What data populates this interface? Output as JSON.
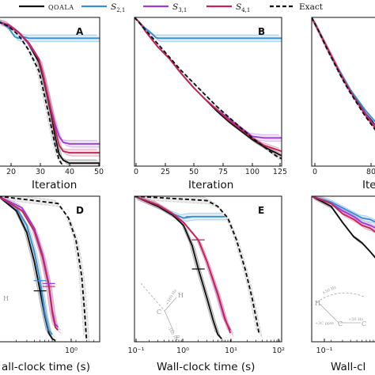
{
  "legend": [
    {
      "label": "QOALA",
      "color": "#111111",
      "dash": "none"
    },
    {
      "label": "S2,1",
      "color": "#3a8fd0",
      "dash": "none"
    },
    {
      "label": "S3,1",
      "color": "#9b3fd0",
      "dash": "none"
    },
    {
      "label": "S4,1",
      "color": "#c8245a",
      "dash": "none"
    },
    {
      "label": "Exact",
      "color": "#111111",
      "dash": "5,3"
    }
  ],
  "chart_data": [
    {
      "panel": "A",
      "type": "line",
      "xlabel": "Iteration",
      "xlim": [
        0,
        50
      ],
      "ylim": [
        0,
        1
      ],
      "xticks": [
        "20",
        "30",
        "40",
        "50"
      ],
      "series": [
        {
          "name": "QOALA",
          "x": [
            0,
            5,
            10,
            15,
            20,
            22,
            24,
            26,
            28,
            30,
            32,
            35,
            40,
            50
          ],
          "y": [
            0.97,
            0.95,
            0.9,
            0.82,
            0.7,
            0.6,
            0.48,
            0.35,
            0.2,
            0.08,
            0.04,
            0.02,
            0.02,
            0.02
          ]
        },
        {
          "name": "S2,1",
          "x": [
            0,
            5,
            8,
            10,
            12,
            15,
            20,
            30,
            40,
            50
          ],
          "y": [
            0.98,
            0.93,
            0.87,
            0.86,
            0.87,
            0.86,
            0.86,
            0.86,
            0.86,
            0.86
          ]
        },
        {
          "name": "S3,1",
          "x": [
            0,
            5,
            10,
            15,
            20,
            22,
            24,
            26,
            28,
            30,
            32,
            35,
            40,
            50
          ],
          "y": [
            0.97,
            0.94,
            0.9,
            0.82,
            0.72,
            0.62,
            0.5,
            0.38,
            0.28,
            0.2,
            0.16,
            0.15,
            0.15,
            0.15
          ]
        },
        {
          "name": "S4,1",
          "x": [
            0,
            5,
            10,
            15,
            20,
            22,
            24,
            26,
            28,
            30,
            32,
            35,
            40,
            50
          ],
          "y": [
            0.97,
            0.95,
            0.9,
            0.83,
            0.72,
            0.62,
            0.5,
            0.37,
            0.25,
            0.14,
            0.1,
            0.09,
            0.09,
            0.09
          ]
        },
        {
          "name": "Exact",
          "x": [
            0,
            5,
            10,
            15,
            20,
            22,
            24,
            26,
            28,
            30,
            32
          ],
          "y": [
            0.97,
            0.94,
            0.88,
            0.78,
            0.64,
            0.52,
            0.4,
            0.27,
            0.14,
            0.04,
            0.0
          ]
        }
      ]
    },
    {
      "panel": "B",
      "type": "line",
      "xlabel": "Iteration",
      "xlim": [
        0,
        125
      ],
      "ylim": [
        0,
        1
      ],
      "xticks": [
        "0",
        "25",
        "50",
        "75",
        "100",
        "125"
      ],
      "series": [
        {
          "name": "QOALA",
          "x": [
            0,
            5,
            10,
            15,
            20,
            25,
            30,
            40,
            50,
            60,
            70,
            80,
            90,
            100,
            110,
            120,
            125
          ],
          "y": [
            1.0,
            0.96,
            0.9,
            0.85,
            0.8,
            0.76,
            0.72,
            0.62,
            0.53,
            0.45,
            0.37,
            0.3,
            0.24,
            0.18,
            0.13,
            0.09,
            0.07
          ]
        },
        {
          "name": "S2,1",
          "x": [
            0,
            5,
            10,
            15,
            18,
            20,
            25,
            50,
            75,
            100,
            125
          ],
          "y": [
            1.0,
            0.96,
            0.92,
            0.89,
            0.865,
            0.86,
            0.86,
            0.86,
            0.86,
            0.86,
            0.86
          ]
        },
        {
          "name": "S3,1",
          "x": [
            0,
            5,
            10,
            15,
            20,
            25,
            30,
            40,
            50,
            60,
            70,
            80,
            90,
            100,
            110,
            125
          ],
          "y": [
            1.0,
            0.96,
            0.9,
            0.85,
            0.8,
            0.76,
            0.72,
            0.62,
            0.53,
            0.45,
            0.38,
            0.32,
            0.26,
            0.2,
            0.19,
            0.19
          ]
        },
        {
          "name": "S4,1",
          "x": [
            0,
            5,
            10,
            15,
            20,
            25,
            30,
            40,
            50,
            60,
            70,
            80,
            90,
            100,
            110,
            125
          ],
          "y": [
            1.0,
            0.96,
            0.9,
            0.85,
            0.8,
            0.76,
            0.72,
            0.62,
            0.53,
            0.45,
            0.38,
            0.31,
            0.25,
            0.19,
            0.14,
            0.1
          ]
        },
        {
          "name": "Exact",
          "x": [
            0,
            10,
            20,
            30,
            40,
            50,
            60,
            70,
            80,
            90,
            100,
            110,
            120,
            125
          ],
          "y": [
            1.0,
            0.91,
            0.82,
            0.73,
            0.64,
            0.56,
            0.48,
            0.4,
            0.33,
            0.26,
            0.19,
            0.13,
            0.07,
            0.05
          ]
        }
      ]
    },
    {
      "panel": "C",
      "type": "line",
      "xlabel": "Ite",
      "xlim": [
        0,
        100
      ],
      "ylim": [
        0,
        1
      ],
      "xticks": [
        "0",
        "80"
      ],
      "series": [
        {
          "name": "QOALA",
          "x": [
            0,
            10,
            20,
            30,
            40,
            50,
            60,
            70,
            80,
            90,
            100
          ],
          "y": [
            1.0,
            0.9,
            0.8,
            0.7,
            0.6,
            0.52,
            0.44,
            0.36,
            0.3,
            0.22,
            0.15
          ]
        },
        {
          "name": "S2,1",
          "x": [
            0,
            10,
            20,
            30,
            40,
            50,
            60,
            70,
            80,
            90,
            100
          ],
          "y": [
            1.0,
            0.9,
            0.8,
            0.7,
            0.61,
            0.52,
            0.45,
            0.38,
            0.32,
            0.26,
            0.2
          ]
        },
        {
          "name": "S3,1",
          "x": [
            0,
            10,
            20,
            30,
            40,
            50,
            60,
            70,
            80,
            90,
            100
          ],
          "y": [
            1.0,
            0.9,
            0.8,
            0.7,
            0.6,
            0.51,
            0.43,
            0.36,
            0.29,
            0.23,
            0.17
          ]
        },
        {
          "name": "S4,1",
          "x": [
            0,
            10,
            20,
            30,
            40,
            50,
            60,
            70,
            80,
            90,
            100
          ],
          "y": [
            1.0,
            0.9,
            0.8,
            0.7,
            0.6,
            0.51,
            0.43,
            0.35,
            0.28,
            0.22,
            0.16
          ]
        },
        {
          "name": "Exact",
          "x": [
            0,
            10,
            20,
            30,
            40,
            50,
            60,
            70,
            80,
            90,
            100
          ],
          "y": [
            1.0,
            0.9,
            0.79,
            0.69,
            0.59,
            0.5,
            0.42,
            0.34,
            0.27,
            0.2,
            0.14
          ]
        }
      ]
    },
    {
      "panel": "D",
      "type": "line",
      "xlabel": "all-clock time (s)",
      "xscale": "log",
      "xlim": [
        0.1,
        5
      ],
      "ylim": [
        0,
        1
      ],
      "xticks": [
        "10⁰"
      ],
      "series": [
        {
          "name": "QOALA",
          "x": [
            0.1,
            0.2,
            0.3,
            0.4,
            0.5,
            0.6,
            0.7,
            0.8,
            0.9
          ],
          "y": [
            1.0,
            0.9,
            0.75,
            0.55,
            0.35,
            0.18,
            0.06,
            0.02,
            0.01
          ]
        },
        {
          "name": "S2,1",
          "x": [
            0.1,
            0.2,
            0.3,
            0.4,
            0.5,
            0.6,
            0.7,
            0.8
          ],
          "y": [
            1.0,
            0.92,
            0.8,
            0.62,
            0.42,
            0.2,
            0.08,
            0.05
          ]
        },
        {
          "name": "S3,1",
          "x": [
            0.1,
            0.25,
            0.4,
            0.55,
            0.7,
            0.8,
            0.9,
            1.0
          ],
          "y": [
            1.0,
            0.92,
            0.78,
            0.6,
            0.4,
            0.22,
            0.12,
            0.1
          ]
        },
        {
          "name": "S4,1",
          "x": [
            0.1,
            0.25,
            0.4,
            0.55,
            0.7,
            0.8,
            0.9,
            1.0
          ],
          "y": [
            1.0,
            0.9,
            0.76,
            0.58,
            0.38,
            0.2,
            0.1,
            0.08
          ]
        },
        {
          "name": "Exact",
          "x": [
            0.1,
            1.0,
            1.5,
            2.0,
            2.5,
            2.8,
            3.0
          ],
          "y": [
            1.0,
            0.95,
            0.85,
            0.7,
            0.45,
            0.2,
            0.02
          ]
        }
      ],
      "inset_labels": [
        "H"
      ]
    },
    {
      "panel": "E",
      "type": "line",
      "xlabel": "Wall-clock time (s)",
      "xscale": "log",
      "xlim": [
        0.1,
        100
      ],
      "ylim": [
        0,
        1
      ],
      "xticks": [
        "10⁻¹",
        "10⁰",
        "10¹",
        "10²"
      ],
      "series": [
        {
          "name": "QOALA",
          "x": [
            0.1,
            0.3,
            0.6,
            1.0,
            1.5,
            2.0,
            3.0,
            4.0,
            5.0,
            6.0
          ],
          "y": [
            1.0,
            0.93,
            0.87,
            0.8,
            0.66,
            0.5,
            0.3,
            0.15,
            0.05,
            0.02
          ]
        },
        {
          "name": "S2,1",
          "x": [
            0.1,
            0.3,
            0.6,
            1.0,
            1.5,
            2.0,
            3.0,
            5.0,
            7.0
          ],
          "y": [
            1.0,
            0.94,
            0.88,
            0.85,
            0.86,
            0.86,
            0.86,
            0.86,
            0.86
          ]
        },
        {
          "name": "S3,1",
          "x": [
            0.1,
            0.3,
            0.6,
            1.0,
            2.0,
            3.0,
            5.0,
            7.0,
            9.0
          ],
          "y": [
            1.0,
            0.94,
            0.88,
            0.82,
            0.7,
            0.55,
            0.32,
            0.15,
            0.08
          ]
        },
        {
          "name": "S4,1",
          "x": [
            0.1,
            0.3,
            0.6,
            1.0,
            2.0,
            3.0,
            5.0,
            7.0,
            9.0
          ],
          "y": [
            1.0,
            0.94,
            0.88,
            0.82,
            0.7,
            0.55,
            0.33,
            0.16,
            0.06
          ]
        },
        {
          "name": "Exact",
          "x": [
            0.1,
            3.0,
            5.0,
            8.0,
            12.0,
            18.0,
            25.0,
            35.0
          ],
          "y": [
            1.0,
            0.97,
            0.93,
            0.85,
            0.7,
            0.5,
            0.3,
            0.05
          ]
        }
      ],
      "inset_labels": [
        "H",
        "C",
        "F",
        "+160 Hz",
        "-160 Hz"
      ]
    },
    {
      "panel": "F",
      "type": "line",
      "xlabel": "Wall-cl",
      "xscale": "log",
      "xlim": [
        0.1,
        1.5
      ],
      "ylim": [
        0,
        1
      ],
      "xticks": [
        "10⁻¹"
      ],
      "series": [
        {
          "name": "QOALA",
          "x": [
            0.1,
            0.2,
            0.3,
            0.45,
            0.6,
            0.8,
            1.0,
            1.3
          ],
          "y": [
            1.0,
            0.93,
            0.82,
            0.72,
            0.68,
            0.62,
            0.57,
            0.55
          ]
        },
        {
          "name": "S2,1",
          "x": [
            0.1,
            0.2,
            0.3,
            0.45,
            0.6,
            0.8,
            1.0,
            1.3
          ],
          "y": [
            1.0,
            0.96,
            0.92,
            0.88,
            0.85,
            0.84,
            0.82,
            0.8
          ]
        },
        {
          "name": "S3,1",
          "x": [
            0.1,
            0.2,
            0.3,
            0.45,
            0.6,
            0.8,
            1.0,
            1.3
          ],
          "y": [
            1.0,
            0.95,
            0.9,
            0.86,
            0.82,
            0.8,
            0.78,
            0.76
          ]
        },
        {
          "name": "S4,1",
          "x": [
            0.1,
            0.2,
            0.3,
            0.45,
            0.6,
            0.8,
            1.0,
            1.3
          ],
          "y": [
            1.0,
            0.95,
            0.88,
            0.84,
            0.8,
            0.78,
            0.75,
            0.73
          ]
        }
      ],
      "inset_labels": [
        "H",
        "C",
        "C",
        "+3C ppm",
        "+50 Hz",
        "+50 Hz"
      ]
    }
  ],
  "icons": [
    "panel-inset-spin-diagram-icon"
  ]
}
